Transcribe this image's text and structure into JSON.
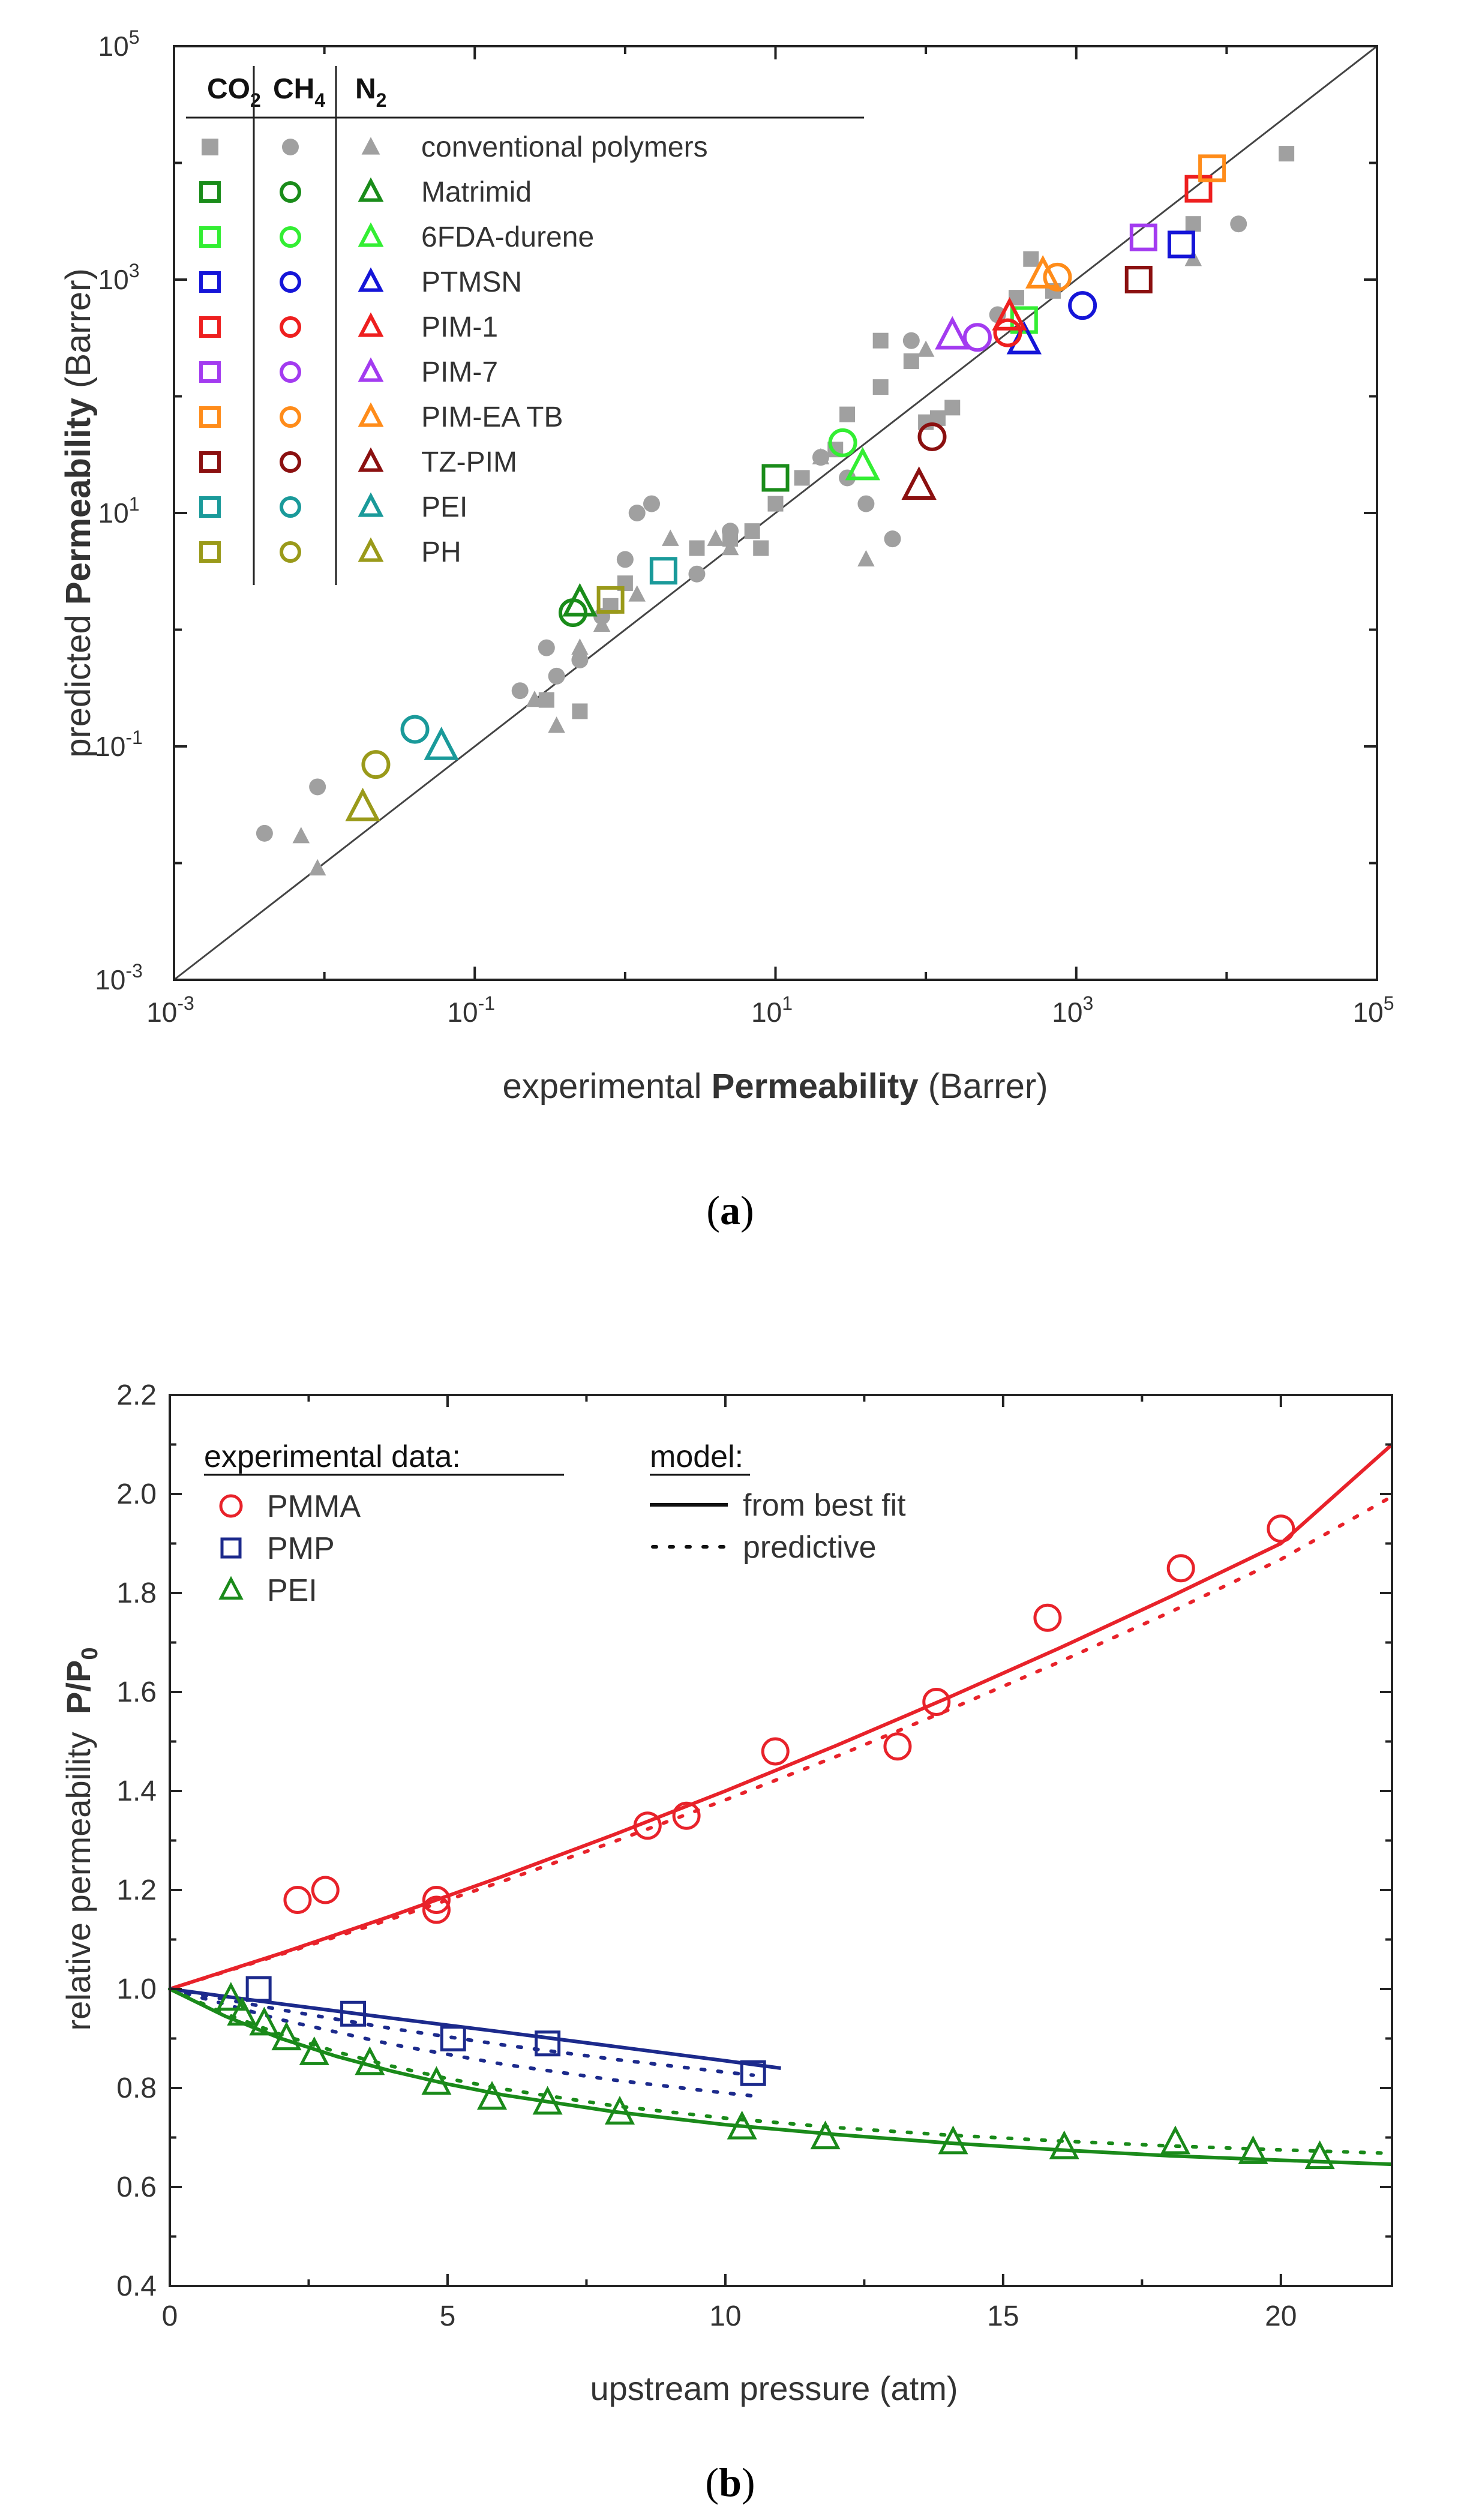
{
  "panel_a": {
    "caption_letter": "a",
    "colors": {
      "conventional": "#a0a0a0",
      "Matrimid": "#1a8c1a",
      "6FDA-durene": "#33ee33",
      "PTMSN": "#1515d8",
      "PIM-1": "#ee1f1f",
      "PIM-7": "#a33bf0",
      "PIM-EA TB": "#ff8c1a",
      "TZ-PIM": "#8b1010",
      "PEI": "#1a9a9a",
      "PH": "#9a9a1a"
    },
    "chart_data": {
      "type": "scatter",
      "title": "",
      "xlabel_prefix": "experimental",
      "xlabel_bold": "Permeability",
      "xlabel_suffix": "(Barrer)",
      "ylabel_prefix": "predicted",
      "ylabel_bold": "Permeability",
      "ylabel_suffix": "(Barrer)",
      "xscale": "log",
      "yscale": "log",
      "xlim_exp": [
        -3,
        5
      ],
      "ylim_exp": [
        -3,
        5
      ],
      "tick_base": "10",
      "tick_exponents": [
        "-3",
        "-1",
        "1",
        "3",
        "5"
      ],
      "diagonal_line": true,
      "legend": {
        "placement": "top-left",
        "col_headers": [
          {
            "base": "CO",
            "sub": "2"
          },
          {
            "base": "CH",
            "sub": "4"
          },
          {
            "base": "N",
            "sub": "2"
          }
        ],
        "entries": [
          {
            "label": "conventional polymers",
            "filled": true
          },
          {
            "label": "Matrimid",
            "filled": false
          },
          {
            "label": "6FDA-durene",
            "filled": false
          },
          {
            "label": "PTMSN",
            "filled": false
          },
          {
            "label": "PIM-1",
            "filled": false
          },
          {
            "label": "PIM-7",
            "filled": false
          },
          {
            "label": "PIM-EA TB",
            "filled": false
          },
          {
            "label": "TZ-PIM",
            "filled": false
          },
          {
            "label": "PEI",
            "filled": false
          },
          {
            "label": "PH",
            "filled": false
          }
        ]
      },
      "conventional_points": [
        {
          "gas": "CO2",
          "points": [
            [
              0.3,
              0.25
            ],
            [
              0.5,
              0.2
            ],
            [
              0.8,
              1.6
            ],
            [
              1.0,
              2.5
            ],
            [
              3,
              5
            ],
            [
              5,
              6
            ],
            [
              7,
              7
            ],
            [
              8,
              5
            ],
            [
              10,
              12
            ],
            [
              15,
              20
            ],
            [
              25,
              35
            ],
            [
              30,
              70
            ],
            [
              50,
              300
            ],
            [
              50,
              120
            ],
            [
              80,
              200
            ],
            [
              100,
              60
            ],
            [
              120,
              65
            ],
            [
              150,
              80
            ],
            [
              400,
              700
            ],
            [
              500,
              1500
            ],
            [
              700,
              800
            ],
            [
              6000,
              3000
            ],
            [
              25000,
              12000
            ]
          ]
        },
        {
          "gas": "CH4",
          "points": [
            [
              0.004,
              0.018
            ],
            [
              0.009,
              0.045
            ],
            [
              0.2,
              0.3
            ],
            [
              0.3,
              0.7
            ],
            [
              0.35,
              0.4
            ],
            [
              0.5,
              0.55
            ],
            [
              0.7,
              1.3
            ],
            [
              1.0,
              4
            ],
            [
              1.2,
              10
            ],
            [
              1.5,
              12
            ],
            [
              3,
              3
            ],
            [
              5,
              7
            ],
            [
              20,
              30
            ],
            [
              30,
              20
            ],
            [
              40,
              12
            ],
            [
              60,
              6
            ],
            [
              80,
              300
            ],
            [
              300,
              500
            ],
            [
              12000,
              3000
            ]
          ]
        },
        {
          "gas": "N2",
          "points": [
            [
              0.007,
              0.017
            ],
            [
              0.009,
              0.009
            ],
            [
              0.25,
              0.25
            ],
            [
              0.35,
              0.15
            ],
            [
              0.5,
              0.7
            ],
            [
              0.7,
              1.1
            ],
            [
              1.2,
              2
            ],
            [
              2,
              6
            ],
            [
              4,
              6
            ],
            [
              5,
              5
            ],
            [
              20,
              30
            ],
            [
              40,
              4
            ],
            [
              100,
              250
            ],
            [
              6000,
              1500
            ]
          ]
        }
      ],
      "material_points": [
        {
          "material": "Matrimid",
          "gas": "CO2",
          "x": 10,
          "y": 20
        },
        {
          "material": "Matrimid",
          "gas": "CH4",
          "x": 0.45,
          "y": 1.4
        },
        {
          "material": "Matrimid",
          "gas": "N2",
          "x": 0.5,
          "y": 1.7
        },
        {
          "material": "6FDA-durene",
          "gas": "CO2",
          "x": 450,
          "y": 450
        },
        {
          "material": "6FDA-durene",
          "gas": "CH4",
          "x": 28,
          "y": 40
        },
        {
          "material": "6FDA-durene",
          "gas": "N2",
          "x": 38,
          "y": 25
        },
        {
          "material": "PTMSN",
          "gas": "CO2",
          "x": 5000,
          "y": 2000
        },
        {
          "material": "PTMSN",
          "gas": "CH4",
          "x": 1100,
          "y": 600
        },
        {
          "material": "PTMSN",
          "gas": "N2",
          "x": 450,
          "y": 300
        },
        {
          "material": "PIM-1",
          "gas": "CO2",
          "x": 6500,
          "y": 6000
        },
        {
          "material": "PIM-1",
          "gas": "CH4",
          "x": 350,
          "y": 350
        },
        {
          "material": "PIM-1",
          "gas": "N2",
          "x": 360,
          "y": 480
        },
        {
          "material": "PIM-7",
          "gas": "CO2",
          "x": 2800,
          "y": 2300
        },
        {
          "material": "PIM-7",
          "gas": "CH4",
          "x": 220,
          "y": 320
        },
        {
          "material": "PIM-7",
          "gas": "N2",
          "x": 150,
          "y": 330
        },
        {
          "material": "PIM-EA TB",
          "gas": "CO2",
          "x": 8000,
          "y": 9000
        },
        {
          "material": "PIM-EA TB",
          "gas": "CH4",
          "x": 750,
          "y": 1050
        },
        {
          "material": "PIM-EA TB",
          "gas": "N2",
          "x": 600,
          "y": 1100
        },
        {
          "material": "TZ-PIM",
          "gas": "CO2",
          "x": 2600,
          "y": 1000
        },
        {
          "material": "TZ-PIM",
          "gas": "CH4",
          "x": 110,
          "y": 45
        },
        {
          "material": "TZ-PIM",
          "gas": "N2",
          "x": 90,
          "y": 17
        },
        {
          "material": "PEI",
          "gas": "CO2",
          "x": 1.8,
          "y": 3.2
        },
        {
          "material": "PEI",
          "gas": "CH4",
          "x": 0.04,
          "y": 0.14
        },
        {
          "material": "PEI",
          "gas": "N2",
          "x": 0.06,
          "y": 0.1
        },
        {
          "material": "PH",
          "gas": "CO2",
          "x": 0.8,
          "y": 1.8
        },
        {
          "material": "PH",
          "gas": "CH4",
          "x": 0.022,
          "y": 0.07
        },
        {
          "material": "PH",
          "gas": "N2",
          "x": 0.018,
          "y": 0.03
        }
      ]
    }
  },
  "panel_b": {
    "caption_letter": "b",
    "chart_data": {
      "type": "line",
      "title": "",
      "xlabel": "upstream pressure (atm)",
      "ylabel_prefix": "relative permeability",
      "ylabel_bold": "P/P",
      "ylabel_sub": "0",
      "xlim": [
        0,
        22
      ],
      "ylim": [
        0.4,
        2.2
      ],
      "x_ticks": [
        "0",
        "5",
        "10",
        "15",
        "20"
      ],
      "x_tick_values": [
        0,
        5,
        10,
        15,
        20
      ],
      "y_ticks": [
        "0.4",
        "0.6",
        "0.8",
        "1.0",
        "1.2",
        "1.4",
        "1.6",
        "1.8",
        "2.0",
        "2.2"
      ],
      "y_tick_values": [
        0.4,
        0.6,
        0.8,
        1.0,
        1.2,
        1.4,
        1.6,
        1.8,
        2.0,
        2.2
      ],
      "legend_exp_title": "experimental data:",
      "legend_model_title": "model:",
      "legend_model_entries": [
        "from best fit",
        "predictive"
      ],
      "series": [
        {
          "name": "PMMA",
          "marker": "circle",
          "color": "#e8222a",
          "points": [
            [
              2.3,
              1.18
            ],
            [
              2.8,
              1.2
            ],
            [
              4.8,
              1.18
            ],
            [
              4.8,
              1.16
            ],
            [
              8.6,
              1.33
            ],
            [
              9.3,
              1.35
            ],
            [
              10.9,
              1.48
            ],
            [
              13.1,
              1.49
            ],
            [
              13.8,
              1.58
            ],
            [
              15.8,
              1.75
            ],
            [
              18.2,
              1.85
            ],
            [
              20,
              1.93
            ]
          ],
          "fit": [
            [
              0,
              1.0
            ],
            [
              2,
              1.072
            ],
            [
              4,
              1.148
            ],
            [
              6,
              1.228
            ],
            [
              8,
              1.312
            ],
            [
              10,
              1.4
            ],
            [
              12,
              1.492
            ],
            [
              14,
              1.588
            ],
            [
              16,
              1.688
            ],
            [
              18,
              1.792
            ],
            [
              20,
              1.9
            ],
            [
              22,
              2.1
            ]
          ],
          "pred": [
            [
              0,
              1.0
            ],
            [
              2,
              1.07
            ],
            [
              4,
              1.142
            ],
            [
              6,
              1.218
            ],
            [
              8,
              1.298
            ],
            [
              10,
              1.382
            ],
            [
              12,
              1.47
            ],
            [
              14,
              1.563
            ],
            [
              16,
              1.66
            ],
            [
              18,
              1.761
            ],
            [
              20,
              1.868
            ],
            [
              22,
              1.995
            ]
          ]
        },
        {
          "name": "PMP",
          "marker": "square",
          "color": "#1c2a8c",
          "points": [
            [
              1.6,
              1.0
            ],
            [
              3.3,
              0.95
            ],
            [
              5.1,
              0.9
            ],
            [
              6.8,
              0.89
            ],
            [
              10.5,
              0.83
            ]
          ],
          "fit": [
            [
              0,
              1.0
            ],
            [
              2,
              0.97
            ],
            [
              4,
              0.941
            ],
            [
              6,
              0.913
            ],
            [
              8,
              0.884
            ],
            [
              10,
              0.855
            ],
            [
              11,
              0.84
            ]
          ],
          "pred_a": [
            [
              0,
              1.0
            ],
            [
              2,
              0.958
            ],
            [
              4,
              0.92
            ],
            [
              6,
              0.887
            ],
            [
              8,
              0.858
            ],
            [
              10,
              0.832
            ],
            [
              10.5,
              0.826
            ]
          ],
          "pred_b": [
            [
              0,
              1.0
            ],
            [
              2,
              0.938
            ],
            [
              4,
              0.888
            ],
            [
              6,
              0.848
            ],
            [
              8,
              0.816
            ],
            [
              10,
              0.79
            ],
            [
              10.5,
              0.784
            ]
          ]
        },
        {
          "name": "PEI",
          "marker": "triangle",
          "color": "#1a8a1a",
          "points": [
            [
              1.1,
              0.98
            ],
            [
              1.3,
              0.95
            ],
            [
              1.7,
              0.93
            ],
            [
              2.1,
              0.9
            ],
            [
              2.6,
              0.87
            ],
            [
              3.6,
              0.85
            ],
            [
              4.8,
              0.81
            ],
            [
              5.8,
              0.78
            ],
            [
              6.8,
              0.77
            ],
            [
              8.1,
              0.75
            ],
            [
              10.3,
              0.72
            ],
            [
              11.8,
              0.7
            ],
            [
              14.1,
              0.69
            ],
            [
              16.1,
              0.68
            ],
            [
              18.1,
              0.69
            ],
            [
              19.5,
              0.67
            ],
            [
              20.7,
              0.66
            ]
          ],
          "fit": [
            [
              0,
              1.0
            ],
            [
              1,
              0.945
            ],
            [
              2,
              0.9
            ],
            [
              3,
              0.864
            ],
            [
              4,
              0.834
            ],
            [
              5,
              0.808
            ],
            [
              6,
              0.786
            ],
            [
              8,
              0.752
            ],
            [
              10,
              0.726
            ],
            [
              12,
              0.706
            ],
            [
              14,
              0.689
            ],
            [
              16,
              0.675
            ],
            [
              18,
              0.663
            ],
            [
              20,
              0.654
            ],
            [
              22,
              0.646
            ]
          ],
          "pred": [
            [
              0,
              1.0
            ],
            [
              1,
              0.95
            ],
            [
              2,
              0.908
            ],
            [
              3,
              0.873
            ],
            [
              4,
              0.844
            ],
            [
              5,
              0.819
            ],
            [
              6,
              0.798
            ],
            [
              8,
              0.764
            ],
            [
              10,
              0.739
            ],
            [
              12,
              0.72
            ],
            [
              14,
              0.705
            ],
            [
              16,
              0.693
            ],
            [
              18,
              0.683
            ],
            [
              20,
              0.675
            ],
            [
              22,
              0.668
            ]
          ]
        }
      ]
    }
  }
}
